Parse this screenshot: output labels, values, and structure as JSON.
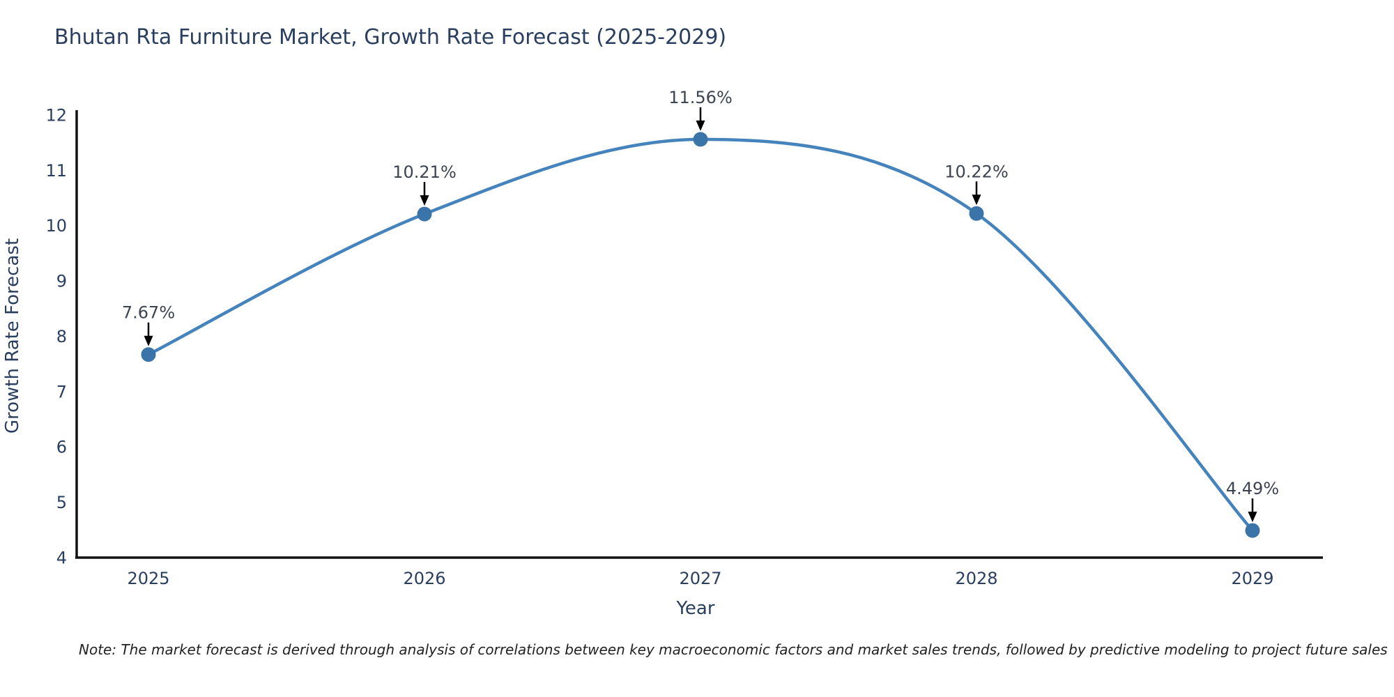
{
  "chart_data": {
    "type": "line",
    "title": "Bhutan Rta Furniture Market, Growth Rate Forecast (2025-2029)",
    "xlabel": "Year",
    "ylabel": "Growth Rate Forecast",
    "x": [
      2025,
      2026,
      2027,
      2028,
      2029
    ],
    "series": [
      {
        "name": "Growth Rate Forecast",
        "values": [
          7.67,
          10.21,
          11.56,
          10.22,
          4.49
        ]
      }
    ],
    "point_labels": [
      "7.67%",
      "10.21%",
      "11.56%",
      "10.22%",
      "4.49%"
    ],
    "ylim": [
      4,
      12
    ],
    "yticks": [
      4,
      5,
      6,
      7,
      8,
      9,
      10,
      11,
      12
    ],
    "grid": false,
    "legend_position": "none",
    "line_shape": "spline",
    "line_color": "#4483bc",
    "marker_color": "#3a74a8",
    "axis_color": "#111111",
    "annotation_arrow_color": "#000000",
    "text_color": "#2a3f5f",
    "note": "Note: The market forecast is derived through analysis of correlations between key macroeconomic factors and market sales trends, followed by predictive modeling to project future sales"
  }
}
